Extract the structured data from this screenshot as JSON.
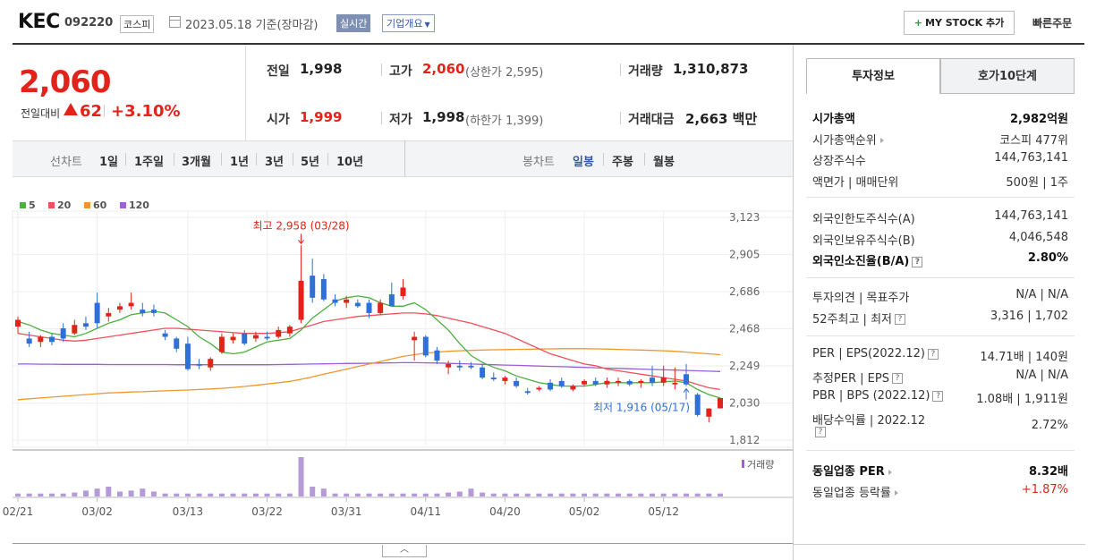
{
  "header": {
    "company_name": "KEC",
    "company_code": "092220",
    "market": "코스피",
    "date_text": "2023.05.18 기준(장마감)",
    "realtime_label": "실시간",
    "company_info_label": "기업개요",
    "mystock_label": "MY STOCK 추가",
    "quick_order_label": "빠른주문"
  },
  "price": {
    "current": "2,060",
    "change_label": "전일대비",
    "change_amount": "62",
    "change_rate": "+3.10%"
  },
  "metrics": {
    "prev_label": "전일",
    "prev_value": "1,998",
    "high_label": "고가",
    "high_value": "2,060",
    "high_sub": "(상한가 2,595)",
    "volume_label": "거래량",
    "volume_value": "1,310,873",
    "open_label": "시가",
    "open_value": "1,999",
    "low_label": "저가",
    "low_value": "1,998",
    "low_sub": "(하한가 1,399)",
    "amount_label": "거래대금",
    "amount_value": "2,663 백만"
  },
  "period_bar": {
    "line_label": "선차트",
    "line_items": [
      "1일",
      "1주일",
      "3개월",
      "1년",
      "3년",
      "5년",
      "10년"
    ],
    "candle_label": "봉차트",
    "candle_items": [
      "일봉",
      "주봉",
      "월봉"
    ],
    "active_candle": "일봉"
  },
  "chart_data": {
    "type": "candlestick",
    "legend": [
      {
        "name": "5",
        "color": "#4caf3f"
      },
      {
        "name": "20",
        "color": "#f0505a"
      },
      {
        "name": "60",
        "color": "#f0962e"
      },
      {
        "name": "120",
        "color": "#9c5fd6"
      }
    ],
    "y_ticks": [
      "3,123",
      "2,905",
      "2,686",
      "2,468",
      "2,249",
      "2,030",
      "1,812"
    ],
    "ylim": [
      1812,
      3123
    ],
    "x_ticks": [
      "02/21",
      "03/02",
      "03/13",
      "03/22",
      "03/31",
      "04/11",
      "04/20",
      "05/02",
      "05/12"
    ],
    "x_tick_index": [
      0,
      7,
      15,
      22,
      29,
      36,
      43,
      50,
      57
    ],
    "high_annotation": "최고 2,958 (03/28)",
    "low_annotation": "최저 1,916 (05/17)",
    "high_index": 25,
    "low_index": 59,
    "volume_label": "거래량",
    "candles": [
      {
        "o": 2480,
        "h": 2540,
        "l": 2440,
        "c": 2520
      },
      {
        "o": 2410,
        "h": 2450,
        "l": 2360,
        "c": 2380
      },
      {
        "o": 2390,
        "h": 2430,
        "l": 2360,
        "c": 2420
      },
      {
        "o": 2420,
        "h": 2440,
        "l": 2370,
        "c": 2390
      },
      {
        "o": 2470,
        "h": 2500,
        "l": 2390,
        "c": 2410
      },
      {
        "o": 2440,
        "h": 2520,
        "l": 2430,
        "c": 2490
      },
      {
        "o": 2500,
        "h": 2540,
        "l": 2460,
        "c": 2480
      },
      {
        "o": 2620,
        "h": 2680,
        "l": 2470,
        "c": 2500
      },
      {
        "o": 2540,
        "h": 2590,
        "l": 2510,
        "c": 2560
      },
      {
        "o": 2580,
        "h": 2620,
        "l": 2560,
        "c": 2600
      },
      {
        "o": 2600,
        "h": 2680,
        "l": 2580,
        "c": 2620
      },
      {
        "o": 2580,
        "h": 2620,
        "l": 2540,
        "c": 2560
      },
      {
        "o": 2580,
        "h": 2610,
        "l": 2540,
        "c": 2560
      },
      {
        "o": 2440,
        "h": 2460,
        "l": 2400,
        "c": 2420
      },
      {
        "o": 2410,
        "h": 2420,
        "l": 2330,
        "c": 2350
      },
      {
        "o": 2380,
        "h": 2420,
        "l": 2220,
        "c": 2230
      },
      {
        "o": 2260,
        "h": 2290,
        "l": 2230,
        "c": 2250
      },
      {
        "o": 2240,
        "h": 2300,
        "l": 2220,
        "c": 2290
      },
      {
        "o": 2330,
        "h": 2440,
        "l": 2320,
        "c": 2420
      },
      {
        "o": 2400,
        "h": 2440,
        "l": 2380,
        "c": 2420
      },
      {
        "o": 2440,
        "h": 2460,
        "l": 2370,
        "c": 2380
      },
      {
        "o": 2410,
        "h": 2450,
        "l": 2390,
        "c": 2430
      },
      {
        "o": 2420,
        "h": 2450,
        "l": 2400,
        "c": 2410
      },
      {
        "o": 2420,
        "h": 2480,
        "l": 2410,
        "c": 2460
      },
      {
        "o": 2440,
        "h": 2490,
        "l": 2420,
        "c": 2480
      },
      {
        "o": 2520,
        "h": 2958,
        "l": 2500,
        "c": 2750
      },
      {
        "o": 2780,
        "h": 2880,
        "l": 2620,
        "c": 2650
      },
      {
        "o": 2760,
        "h": 2790,
        "l": 2630,
        "c": 2640
      },
      {
        "o": 2640,
        "h": 2670,
        "l": 2600,
        "c": 2620
      },
      {
        "o": 2620,
        "h": 2660,
        "l": 2590,
        "c": 2640
      },
      {
        "o": 2620,
        "h": 2640,
        "l": 2590,
        "c": 2600
      },
      {
        "o": 2620,
        "h": 2640,
        "l": 2530,
        "c": 2560
      },
      {
        "o": 2560,
        "h": 2640,
        "l": 2550,
        "c": 2620
      },
      {
        "o": 2670,
        "h": 2740,
        "l": 2610,
        "c": 2600
      },
      {
        "o": 2660,
        "h": 2760,
        "l": 2640,
        "c": 2710
      },
      {
        "o": 2400,
        "h": 2450,
        "l": 2280,
        "c": 2420
      },
      {
        "o": 2420,
        "h": 2430,
        "l": 2300,
        "c": 2310
      },
      {
        "o": 2340,
        "h": 2360,
        "l": 2260,
        "c": 2280
      },
      {
        "o": 2240,
        "h": 2280,
        "l": 2200,
        "c": 2260
      },
      {
        "o": 2250,
        "h": 2280,
        "l": 2220,
        "c": 2240
      },
      {
        "o": 2250,
        "h": 2270,
        "l": 2230,
        "c": 2240
      },
      {
        "o": 2240,
        "h": 2260,
        "l": 2170,
        "c": 2180
      },
      {
        "o": 2180,
        "h": 2210,
        "l": 2160,
        "c": 2170
      },
      {
        "o": 2160,
        "h": 2190,
        "l": 2140,
        "c": 2180
      },
      {
        "o": 2160,
        "h": 2180,
        "l": 2120,
        "c": 2130
      },
      {
        "o": 2100,
        "h": 2120,
        "l": 2080,
        "c": 2090
      },
      {
        "o": 2110,
        "h": 2130,
        "l": 2100,
        "c": 2120
      },
      {
        "o": 2150,
        "h": 2170,
        "l": 2100,
        "c": 2110
      },
      {
        "o": 2160,
        "h": 2180,
        "l": 2120,
        "c": 2130
      },
      {
        "o": 2110,
        "h": 2140,
        "l": 2100,
        "c": 2130
      },
      {
        "o": 2140,
        "h": 2170,
        "l": 2130,
        "c": 2160
      },
      {
        "o": 2160,
        "h": 2180,
        "l": 2130,
        "c": 2140
      },
      {
        "o": 2140,
        "h": 2180,
        "l": 2120,
        "c": 2160
      },
      {
        "o": 2150,
        "h": 2180,
        "l": 2130,
        "c": 2160
      },
      {
        "o": 2160,
        "h": 2170,
        "l": 2130,
        "c": 2140
      },
      {
        "o": 2150,
        "h": 2170,
        "l": 2120,
        "c": 2160
      },
      {
        "o": 2180,
        "h": 2250,
        "l": 2130,
        "c": 2150
      },
      {
        "o": 2150,
        "h": 2250,
        "l": 2130,
        "c": 2180
      },
      {
        "o": 2140,
        "h": 2240,
        "l": 2110,
        "c": 2150
      },
      {
        "o": 2200,
        "h": 2260,
        "l": 2130,
        "c": 2140
      },
      {
        "o": 2080,
        "h": 2090,
        "l": 1950,
        "c": 1960
      },
      {
        "o": 1950,
        "h": 2000,
        "l": 1916,
        "c": 1998
      },
      {
        "o": 1999,
        "h": 2060,
        "l": 1998,
        "c": 2060
      }
    ],
    "volumes": [
      3,
      3,
      3,
      3,
      3,
      4,
      6,
      8,
      10,
      5,
      6,
      8,
      5,
      3,
      3,
      3,
      3,
      3,
      3,
      3,
      3,
      3,
      3,
      3,
      3,
      40,
      10,
      8,
      3,
      3,
      3,
      3,
      3,
      3,
      3,
      3,
      3,
      3,
      4,
      5,
      8,
      4,
      3,
      3,
      3,
      3,
      3,
      3,
      3,
      3,
      3,
      3,
      3,
      3,
      3,
      3,
      3,
      3,
      3,
      3,
      3,
      3,
      3
    ],
    "ma5": [
      2510,
      2490,
      2460,
      2440,
      2430,
      2420,
      2440,
      2470,
      2500,
      2520,
      2550,
      2560,
      2570,
      2560,
      2520,
      2480,
      2420,
      2380,
      2330,
      2320,
      2330,
      2360,
      2390,
      2400,
      2410,
      2460,
      2530,
      2580,
      2630,
      2650,
      2660,
      2650,
      2620,
      2600,
      2600,
      2620,
      2580,
      2520,
      2460,
      2380,
      2310,
      2270,
      2240,
      2220,
      2190,
      2170,
      2150,
      2140,
      2130,
      2130,
      2130,
      2140,
      2150,
      2150,
      2150,
      2150,
      2150,
      2155,
      2160,
      2150,
      2110,
      2080,
      2060
    ],
    "ma20": [
      2440,
      2430,
      2420,
      2410,
      2400,
      2395,
      2400,
      2410,
      2420,
      2430,
      2440,
      2450,
      2460,
      2470,
      2470,
      2465,
      2460,
      2455,
      2450,
      2445,
      2440,
      2440,
      2440,
      2445,
      2450,
      2470,
      2490,
      2510,
      2520,
      2530,
      2540,
      2545,
      2550,
      2555,
      2560,
      2560,
      2555,
      2545,
      2530,
      2515,
      2500,
      2480,
      2460,
      2440,
      2410,
      2380,
      2350,
      2320,
      2300,
      2280,
      2260,
      2250,
      2230,
      2220,
      2210,
      2200,
      2190,
      2180,
      2170,
      2160,
      2140,
      2120,
      2110
    ],
    "ma60": [
      2050,
      2055,
      2060,
      2065,
      2070,
      2075,
      2080,
      2085,
      2090,
      2092,
      2095,
      2097,
      2100,
      2102,
      2105,
      2107,
      2110,
      2113,
      2117,
      2122,
      2128,
      2135,
      2142,
      2150,
      2158,
      2170,
      2185,
      2200,
      2215,
      2230,
      2245,
      2260,
      2275,
      2290,
      2305,
      2315,
      2325,
      2330,
      2335,
      2338,
      2340,
      2342,
      2344,
      2345,
      2346,
      2347,
      2348,
      2349,
      2350,
      2350,
      2350,
      2349,
      2348,
      2346,
      2344,
      2342,
      2340,
      2338,
      2335,
      2330,
      2325,
      2320,
      2315
    ],
    "ma120": [
      2260,
      2260,
      2259,
      2259,
      2258,
      2258,
      2258,
      2258,
      2257,
      2257,
      2257,
      2257,
      2257,
      2257,
      2256,
      2256,
      2256,
      2256,
      2256,
      2256,
      2256,
      2256,
      2256,
      2257,
      2258,
      2259,
      2260,
      2261,
      2262,
      2263,
      2264,
      2265,
      2266,
      2267,
      2268,
      2268,
      2267,
      2266,
      2264,
      2262,
      2260,
      2258,
      2256,
      2254,
      2252,
      2250,
      2248,
      2246,
      2244,
      2242,
      2240,
      2238,
      2236,
      2234,
      2232,
      2230,
      2228,
      2226,
      2224,
      2222,
      2220,
      2218,
      2216
    ]
  },
  "right_panel": {
    "tab_invest": "투자정보",
    "tab_quote10": "호가10단계",
    "rows1": [
      {
        "k": "시가총액",
        "v": "2,982억원",
        "bold": true
      },
      {
        "k": "시가총액순위",
        "v": "코스피 477위",
        "arrow": true
      },
      {
        "k": "상장주식수",
        "v": "144,763,141"
      },
      {
        "k": "액면가 | 매매단위",
        "v": "500원 | 1주"
      }
    ],
    "rows2": [
      {
        "k": "외국인한도주식수(A)",
        "v": "144,763,141"
      },
      {
        "k": "외국인보유주식수(B)",
        "v": "4,046,548"
      },
      {
        "k": "외국인소진율(B/A)",
        "v": "2.80%",
        "bold": true,
        "help": true
      }
    ],
    "rows3": [
      {
        "k": "투자의견 | 목표주가",
        "v": "N/A | N/A"
      },
      {
        "k": "52주최고 | 최저",
        "v": "3,316 | 1,702",
        "help": true
      }
    ],
    "rows4": [
      {
        "k": "PER | EPS(2022.12)",
        "v": "14.71배 | 140원",
        "help": true
      },
      {
        "k": "추정PER | EPS",
        "v": "N/A | N/A",
        "help": true
      },
      {
        "k": "PBR | BPS (2022.12)",
        "v": "1.08배 | 1,911원",
        "help": true
      },
      {
        "k": "배당수익률 | 2022.12",
        "v": "2.72%",
        "help_below": true
      }
    ],
    "rows5": [
      {
        "k": "동일업종 PER",
        "v": "8.32배",
        "bold": true,
        "arrow": true
      },
      {
        "k": "동일업종 등락률",
        "v": "+1.87%",
        "arrow": true,
        "red": true
      }
    ],
    "help_symbol": "?"
  },
  "collapse_symbol": "︿"
}
